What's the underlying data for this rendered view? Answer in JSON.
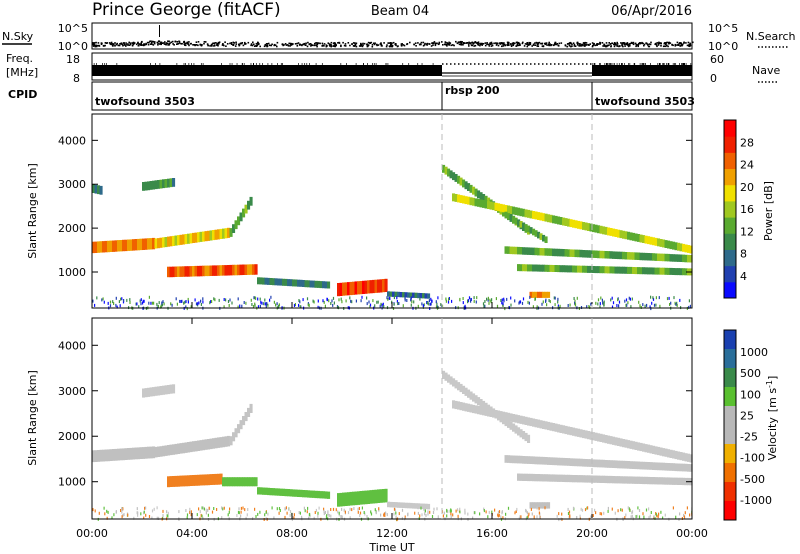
{
  "header": {
    "station": "Prince George (fitACF)",
    "beam": "Beam 04",
    "date": "06/Apr/2016"
  },
  "chart_data": [
    {
      "panel": "n-sky-n-search",
      "type": "scatter",
      "left_label": "N.Sky",
      "left_ticks": [
        "10^5",
        "10^0"
      ],
      "right_ticks": [
        "10^5",
        "10^0"
      ],
      "right_label": "N.Search",
      "xlim_hours": [
        0,
        24
      ],
      "ylim_log10": [
        0,
        5
      ],
      "nsky_profile": [
        {
          "t": 0.0,
          "v": 1.0
        },
        {
          "t": 1.5,
          "v": 1.1
        },
        {
          "t": 2.5,
          "v": 1.35
        },
        {
          "t": 3.5,
          "v": 1.25
        },
        {
          "t": 5.0,
          "v": 1.1
        },
        {
          "t": 8.0,
          "v": 1.0
        },
        {
          "t": 12.0,
          "v": 1.0
        },
        {
          "t": 14.5,
          "v": 1.2
        },
        {
          "t": 16.0,
          "v": 1.05
        },
        {
          "t": 20.0,
          "v": 1.0
        },
        {
          "t": 24.0,
          "v": 1.05
        }
      ]
    },
    {
      "panel": "frequency-nave",
      "type": "line",
      "left_label_top": "Freq.",
      "left_label_bottom": "[MHz]",
      "left_ticks": [
        "18",
        "8"
      ],
      "right_ticks": [
        "60",
        "0"
      ],
      "right_label": "Nave",
      "xlim_hours": [
        0,
        24
      ],
      "freq_segments": [
        {
          "t0": 0.0,
          "t1": 14.0,
          "style": "solid"
        },
        {
          "t0": 14.0,
          "t1": 20.0,
          "style": "dotted"
        },
        {
          "t0": 20.0,
          "t1": 24.0,
          "style": "solid"
        }
      ]
    },
    {
      "panel": "cpid",
      "type": "table",
      "label": "CPID",
      "segments": [
        {
          "t0": 0.0,
          "t1": 14.0,
          "name": "twofsound 3503"
        },
        {
          "t0": 14.0,
          "t1": 20.0,
          "name": "rbsp 200"
        },
        {
          "t0": 20.0,
          "t1": 24.0,
          "name": "twofsound 3503"
        }
      ]
    },
    {
      "panel": "power",
      "type": "heatmap",
      "ylabel": "Slant Range [km]",
      "yticks": [
        "4000",
        "3000",
        "2000",
        "1000"
      ],
      "ytick_values": [
        4000,
        3000,
        2000,
        1000
      ],
      "ylim": [
        180,
        4600
      ],
      "xlim_hours": [
        0,
        24
      ],
      "colorbar": {
        "label": "Power [dB]",
        "ticks": [
          "28",
          "24",
          "20",
          "16",
          "12",
          "8",
          "4"
        ],
        "tick_values": [
          28,
          24,
          20,
          16,
          12,
          8,
          4
        ],
        "range": [
          0,
          32
        ],
        "colors": [
          "#0a0aff",
          "#2040b0",
          "#2e6a8a",
          "#3a8a4a",
          "#5aaa30",
          "#a0c820",
          "#f0e000",
          "#f0a000",
          "#f06000",
          "#f02000",
          "#ff0000"
        ]
      },
      "echo_bands": [
        {
          "t0": 0.0,
          "t1": 0.4,
          "r0": 2900,
          "r1": 2850,
          "w": 200,
          "v": 8
        },
        {
          "t0": 0.0,
          "t1": 2.5,
          "r0": 1560,
          "r1": 1650,
          "w": 260,
          "v": 24
        },
        {
          "t0": 2.5,
          "t1": 5.5,
          "r0": 1650,
          "r1": 1900,
          "w": 230,
          "v": 20
        },
        {
          "t0": 5.5,
          "t1": 6.4,
          "r0": 1900,
          "r1": 2700,
          "w": 200,
          "v": 12
        },
        {
          "t0": 2.0,
          "t1": 3.3,
          "r0": 2950,
          "r1": 3050,
          "w": 200,
          "v": 10
        },
        {
          "t0": 3.0,
          "t1": 6.6,
          "r0": 1000,
          "r1": 1060,
          "w": 240,
          "v": 26
        },
        {
          "t0": 6.6,
          "t1": 9.5,
          "r0": 800,
          "r1": 700,
          "w": 160,
          "v": 8
        },
        {
          "t0": 9.8,
          "t1": 11.8,
          "r0": 600,
          "r1": 700,
          "w": 300,
          "v": 28
        },
        {
          "t0": 11.8,
          "t1": 13.5,
          "r0": 500,
          "r1": 450,
          "w": 120,
          "v": 6
        },
        {
          "t0": 14.0,
          "t1": 17.5,
          "r0": 3350,
          "r1": 1900,
          "w": 180,
          "v": 12
        },
        {
          "t0": 14.4,
          "t1": 24.0,
          "r0": 2700,
          "r1": 1500,
          "w": 180,
          "v": 16
        },
        {
          "t0": 16.5,
          "t1": 24.0,
          "r0": 1500,
          "r1": 1300,
          "w": 170,
          "v": 12
        },
        {
          "t0": 17.0,
          "t1": 24.0,
          "r0": 1100,
          "r1": 1000,
          "w": 160,
          "v": 12
        },
        {
          "t0": 16.5,
          "t1": 18.2,
          "r0": 2300,
          "r1": 1700,
          "w": 150,
          "v": 12
        },
        {
          "t0": 17.5,
          "t1": 18.3,
          "r0": 480,
          "r1": 480,
          "w": 140,
          "v": 24
        }
      ]
    },
    {
      "panel": "velocity",
      "type": "heatmap",
      "xlabel": "Time UT",
      "ylabel": "Slant Range [km]",
      "yticks": [
        "4000",
        "3000",
        "2000",
        "1000"
      ],
      "ytick_values": [
        4000,
        3000,
        2000,
        1000
      ],
      "ylim": [
        180,
        4600
      ],
      "xlim_hours": [
        0,
        24
      ],
      "xticks": [
        "00:00",
        "04:00",
        "08:00",
        "12:00",
        "16:00",
        "20:00",
        "00:00"
      ],
      "xtick_values": [
        0,
        4,
        8,
        12,
        16,
        20,
        24
      ],
      "colorbar": {
        "label": "Velocity",
        "unit": "[m s",
        "unit_sup": "-1",
        "unit_end": "]",
        "ticks": [
          "1000",
          "500",
          "100",
          "25",
          "-25",
          "-100",
          "-500",
          "-1000"
        ],
        "colors": [
          "#1a40b0",
          "#2a6e9a",
          "#3a8a4a",
          "#5ac030",
          "#b8b8b8",
          "#b8b8b8",
          "#f0b000",
          "#f07000",
          "#f03000",
          "#ff0000"
        ]
      },
      "echo_bands": [
        {
          "t0": 0.0,
          "t1": 2.5,
          "r0": 1560,
          "r1": 1650,
          "w": 260,
          "c": "#c0c0c0"
        },
        {
          "t0": 2.5,
          "t1": 5.5,
          "r0": 1650,
          "r1": 1900,
          "w": 230,
          "c": "#c0c0c0"
        },
        {
          "t0": 5.5,
          "t1": 6.4,
          "r0": 1900,
          "r1": 2700,
          "w": 200,
          "c": "#c4c4c4"
        },
        {
          "t0": 2.0,
          "t1": 3.3,
          "r0": 2950,
          "r1": 3050,
          "w": 200,
          "c": "#c8c8c8"
        },
        {
          "t0": 3.0,
          "t1": 5.2,
          "r0": 1000,
          "r1": 1060,
          "w": 240,
          "c": "#f08020"
        },
        {
          "t0": 5.2,
          "t1": 6.6,
          "r0": 1000,
          "r1": 1000,
          "w": 200,
          "c": "#60c040"
        },
        {
          "t0": 6.6,
          "t1": 9.5,
          "r0": 800,
          "r1": 700,
          "w": 160,
          "c": "#60c040"
        },
        {
          "t0": 9.8,
          "t1": 11.8,
          "r0": 600,
          "r1": 700,
          "w": 300,
          "c": "#60c040"
        },
        {
          "t0": 11.8,
          "t1": 13.5,
          "r0": 500,
          "r1": 450,
          "w": 120,
          "c": "#c8c8c8"
        },
        {
          "t0": 14.0,
          "t1": 17.5,
          "r0": 3350,
          "r1": 1900,
          "w": 180,
          "c": "#c8c8c8"
        },
        {
          "t0": 14.4,
          "t1": 24.0,
          "r0": 2700,
          "r1": 1500,
          "w": 180,
          "c": "#c8c8c8"
        },
        {
          "t0": 16.5,
          "t1": 24.0,
          "r0": 1500,
          "r1": 1300,
          "w": 170,
          "c": "#c4c4c4"
        },
        {
          "t0": 17.0,
          "t1": 24.0,
          "r0": 1100,
          "r1": 1000,
          "w": 160,
          "c": "#c4c4c4"
        },
        {
          "t0": 17.5,
          "t1": 18.3,
          "r0": 480,
          "r1": 480,
          "w": 140,
          "c": "#c0c0c0"
        }
      ]
    }
  ]
}
